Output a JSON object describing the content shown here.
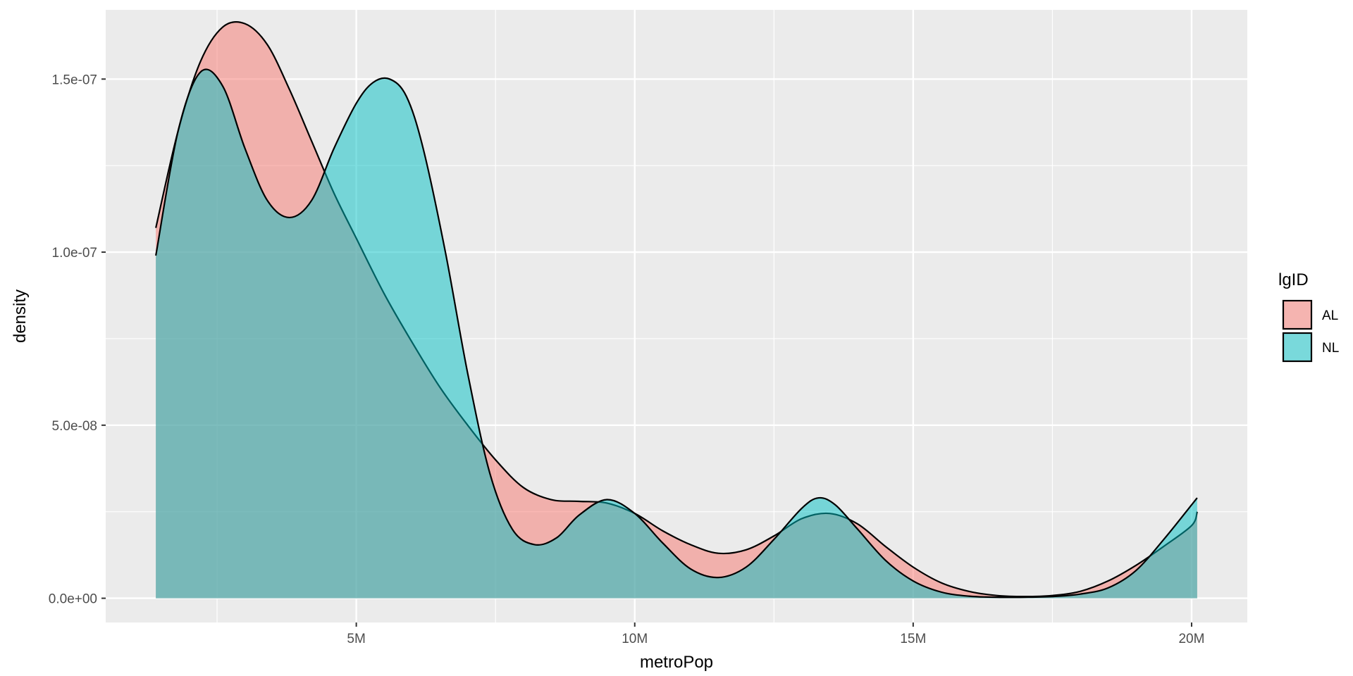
{
  "chart_data": {
    "type": "area",
    "subtype": "density",
    "xlabel": "metroPop",
    "ylabel": "density",
    "xlim": [
      0.5,
      21
    ],
    "ylim": [
      -7e-09,
      1.7e-07
    ],
    "x_ticks": [
      {
        "value": 5,
        "label": "5M"
      },
      {
        "value": 10,
        "label": "10M"
      },
      {
        "value": 15,
        "label": "15M"
      },
      {
        "value": 20,
        "label": "20M"
      }
    ],
    "y_ticks": [
      {
        "value": 0,
        "label": "0.0e+00"
      },
      {
        "value": 5e-08,
        "label": "5.0e-08"
      },
      {
        "value": 1e-07,
        "label": "1.0e-07"
      },
      {
        "value": 1.5e-07,
        "label": "1.5e-07"
      }
    ],
    "grid": true,
    "legend": {
      "title": "lgID",
      "position": "right"
    },
    "series": [
      {
        "name": "AL",
        "color": "#F8766D",
        "x": [
          1.4,
          1.8,
          2.2,
          2.6,
          3.0,
          3.4,
          3.8,
          4.2,
          4.6,
          5.0,
          5.5,
          6.0,
          6.5,
          7.0,
          7.5,
          8.0,
          8.5,
          9.0,
          9.5,
          10.0,
          10.5,
          11.0,
          11.5,
          12.0,
          12.5,
          13.0,
          13.5,
          14.0,
          14.5,
          15.0,
          15.5,
          16.0,
          16.5,
          17.0,
          17.5,
          18.0,
          18.5,
          19.0,
          19.5,
          20.0,
          20.1
        ],
        "values": [
          1.07e-07,
          1.35e-07,
          1.55e-07,
          1.65e-07,
          1.66e-07,
          1.6e-07,
          1.47e-07,
          1.32e-07,
          1.17e-07,
          1.04e-07,
          8.8e-08,
          7.4e-08,
          6.1e-08,
          5e-08,
          4e-08,
          3.2e-08,
          2.85e-08,
          2.8e-08,
          2.75e-08,
          2.45e-08,
          1.95e-08,
          1.55e-08,
          1.3e-08,
          1.4e-08,
          1.8e-08,
          2.3e-08,
          2.45e-08,
          2.15e-08,
          1.5e-08,
          9e-09,
          4.5e-09,
          2e-09,
          8e-10,
          5e-10,
          8e-10,
          2e-09,
          5e-09,
          9.5e-09,
          1.5e-08,
          2.1e-08,
          2.5e-08
        ]
      },
      {
        "name": "NL",
        "color": "#00BFC4",
        "x": [
          1.4,
          1.8,
          2.2,
          2.6,
          3.0,
          3.4,
          3.8,
          4.2,
          4.6,
          5.0,
          5.3,
          5.6,
          5.9,
          6.2,
          6.6,
          7.0,
          7.4,
          7.8,
          8.2,
          8.6,
          9.0,
          9.5,
          10.0,
          10.5,
          11.0,
          11.5,
          12.0,
          12.5,
          13.0,
          13.3,
          13.6,
          14.0,
          14.5,
          15.0,
          15.5,
          16.0,
          16.5,
          17.0,
          17.5,
          18.0,
          18.5,
          19.0,
          19.5,
          20.0,
          20.1
        ],
        "values": [
          9.9e-08,
          1.35e-07,
          1.52e-07,
          1.48e-07,
          1.3e-07,
          1.15e-07,
          1.1e-07,
          1.15e-07,
          1.3e-07,
          1.43e-07,
          1.49e-07,
          1.5e-07,
          1.45e-07,
          1.3e-07,
          1e-07,
          6.5e-08,
          3.6e-08,
          2e-08,
          1.55e-08,
          1.75e-08,
          2.4e-08,
          2.85e-08,
          2.45e-08,
          1.6e-08,
          8.5e-09,
          6e-09,
          9e-09,
          1.7e-08,
          2.6e-08,
          2.9e-08,
          2.7e-08,
          2e-08,
          1.1e-08,
          5e-09,
          1.8e-09,
          6e-10,
          3e-10,
          3e-10,
          5e-10,
          1.2e-09,
          3e-09,
          8e-09,
          1.7e-08,
          2.7e-08,
          2.9e-08
        ]
      }
    ]
  }
}
